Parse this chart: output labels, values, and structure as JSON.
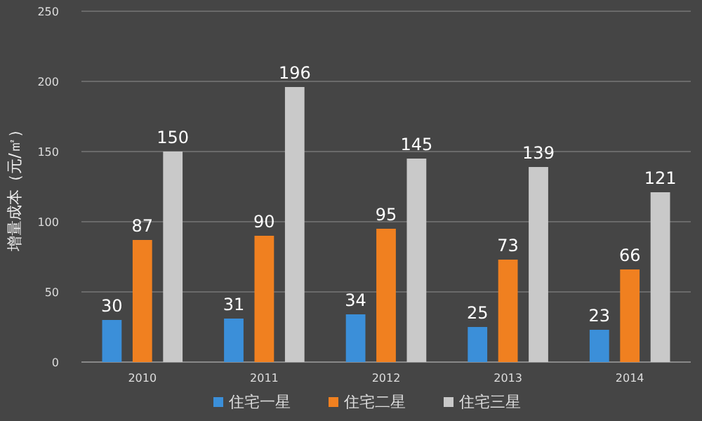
{
  "chart_data": {
    "type": "bar",
    "ylabel": "增量成本（元/㎡）",
    "categories": [
      "2010",
      "2011",
      "2012",
      "2013",
      "2014"
    ],
    "series": [
      {
        "name": "住宅一星",
        "color": "#3b8fd9",
        "values": [
          30,
          31,
          34,
          25,
          23
        ]
      },
      {
        "name": "住宅二星",
        "color": "#f08020",
        "values": [
          87,
          90,
          95,
          73,
          66
        ]
      },
      {
        "name": "住宅三星",
        "color": "#c9c9c9",
        "values": [
          150,
          196,
          145,
          139,
          121
        ]
      }
    ],
    "ylim": [
      0,
      250
    ],
    "yticks": [
      0,
      50,
      100,
      150,
      200,
      250
    ],
    "grid": "y",
    "legend": "bottom",
    "data_labels": true
  }
}
